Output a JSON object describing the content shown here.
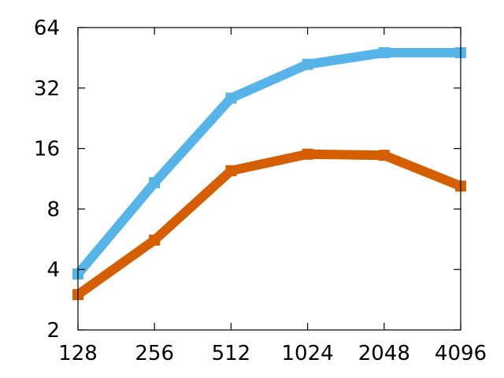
{
  "chart_data": {
    "type": "line",
    "title": "",
    "xlabel": "",
    "ylabel": "",
    "x_scale": "log2",
    "y_scale": "log2",
    "x": [
      128,
      256,
      512,
      1024,
      2048,
      4096
    ],
    "x_tick_labels": [
      "128",
      "256",
      "512",
      "1024",
      "2048",
      "4096"
    ],
    "y_tick_values": [
      2,
      4,
      8,
      16,
      32,
      64
    ],
    "y_tick_labels": [
      "2",
      "4",
      "8",
      "16",
      "32",
      "64"
    ],
    "xlim": [
      128,
      4096
    ],
    "ylim": [
      2,
      64
    ],
    "grid": false,
    "legend": "none",
    "series": [
      {
        "color": "#56b4e9",
        "values": [
          3.8,
          10.8,
          28.5,
          42,
          48,
          48
        ]
      },
      {
        "color": "#d55e00",
        "values": [
          3.0,
          5.6,
          12.4,
          15.0,
          14.8,
          10.4
        ]
      }
    ]
  }
}
